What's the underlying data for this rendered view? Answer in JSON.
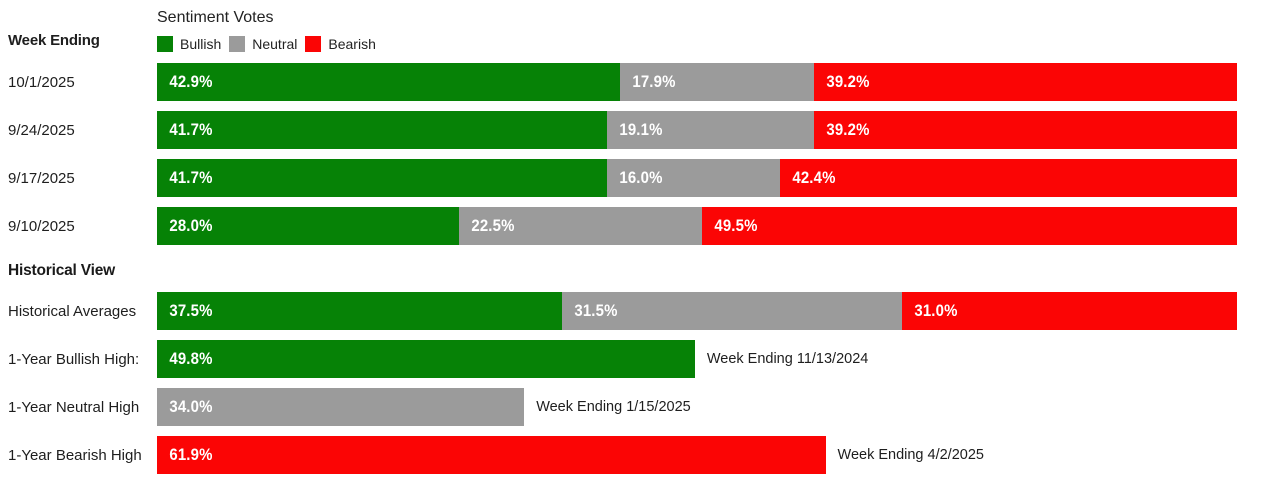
{
  "header": {
    "week_ending_label": "Week Ending",
    "title": "Sentiment Votes",
    "legend": [
      {
        "label": "Bullish",
        "color": "#068206"
      },
      {
        "label": "Neutral",
        "color": "#9B9B9B"
      },
      {
        "label": "Bearish",
        "color": "#FB0505"
      }
    ]
  },
  "weeks": [
    {
      "date": "10/1/2025",
      "bullish": "42.9%",
      "neutral": "17.9%",
      "bearish": "39.2%"
    },
    {
      "date": "9/24/2025",
      "bullish": "41.7%",
      "neutral": "19.1%",
      "bearish": "39.2%"
    },
    {
      "date": "9/17/2025",
      "bullish": "41.7%",
      "neutral": "16.0%",
      "bearish": "42.4%"
    },
    {
      "date": "9/10/2025",
      "bullish": "28.0%",
      "neutral": "22.5%",
      "bearish": "49.5%"
    }
  ],
  "historical": {
    "heading": "Historical View",
    "averages": {
      "label": "Historical Averages",
      "bullish": "37.5%",
      "neutral": "31.5%",
      "bearish": "31.0%"
    },
    "highs": [
      {
        "label": "1-Year Bullish High:",
        "type": "bullish",
        "value": "49.8%",
        "annotation": "Week Ending 11/13/2024"
      },
      {
        "label": "1-Year Neutral High",
        "type": "neutral",
        "value": "34.0%",
        "annotation": "Week Ending 1/15/2025"
      },
      {
        "label": "1-Year Bearish High",
        "type": "bearish",
        "value": "61.9%",
        "annotation": "Week Ending 4/2/2025"
      }
    ]
  },
  "chart_data": {
    "type": "bar",
    "orientation": "horizontal",
    "stacked": true,
    "title": "Sentiment Votes",
    "legend_entries": [
      "Bullish",
      "Neutral",
      "Bearish"
    ],
    "legend_position": "top",
    "xlim": [
      0,
      100
    ],
    "categories": [
      "10/1/2025",
      "9/24/2025",
      "9/17/2025",
      "9/10/2025"
    ],
    "series": [
      {
        "name": "Bullish",
        "color": "#068206",
        "values": [
          42.9,
          41.7,
          41.7,
          28.0
        ]
      },
      {
        "name": "Neutral",
        "color": "#9B9B9B",
        "values": [
          17.9,
          19.1,
          16.0,
          22.5
        ]
      },
      {
        "name": "Bearish",
        "color": "#FB0505",
        "values": [
          39.2,
          39.2,
          42.4,
          49.5
        ]
      }
    ],
    "historical_view": {
      "averages": {
        "Bullish": 37.5,
        "Neutral": 31.5,
        "Bearish": 31.0
      },
      "one_year_bullish_high": {
        "value": 49.8,
        "week_ending": "11/13/2024"
      },
      "one_year_neutral_high": {
        "value": 34.0,
        "week_ending": "1/15/2025"
      },
      "one_year_bearish_high": {
        "value": 61.9,
        "week_ending": "4/2/2025"
      }
    }
  }
}
